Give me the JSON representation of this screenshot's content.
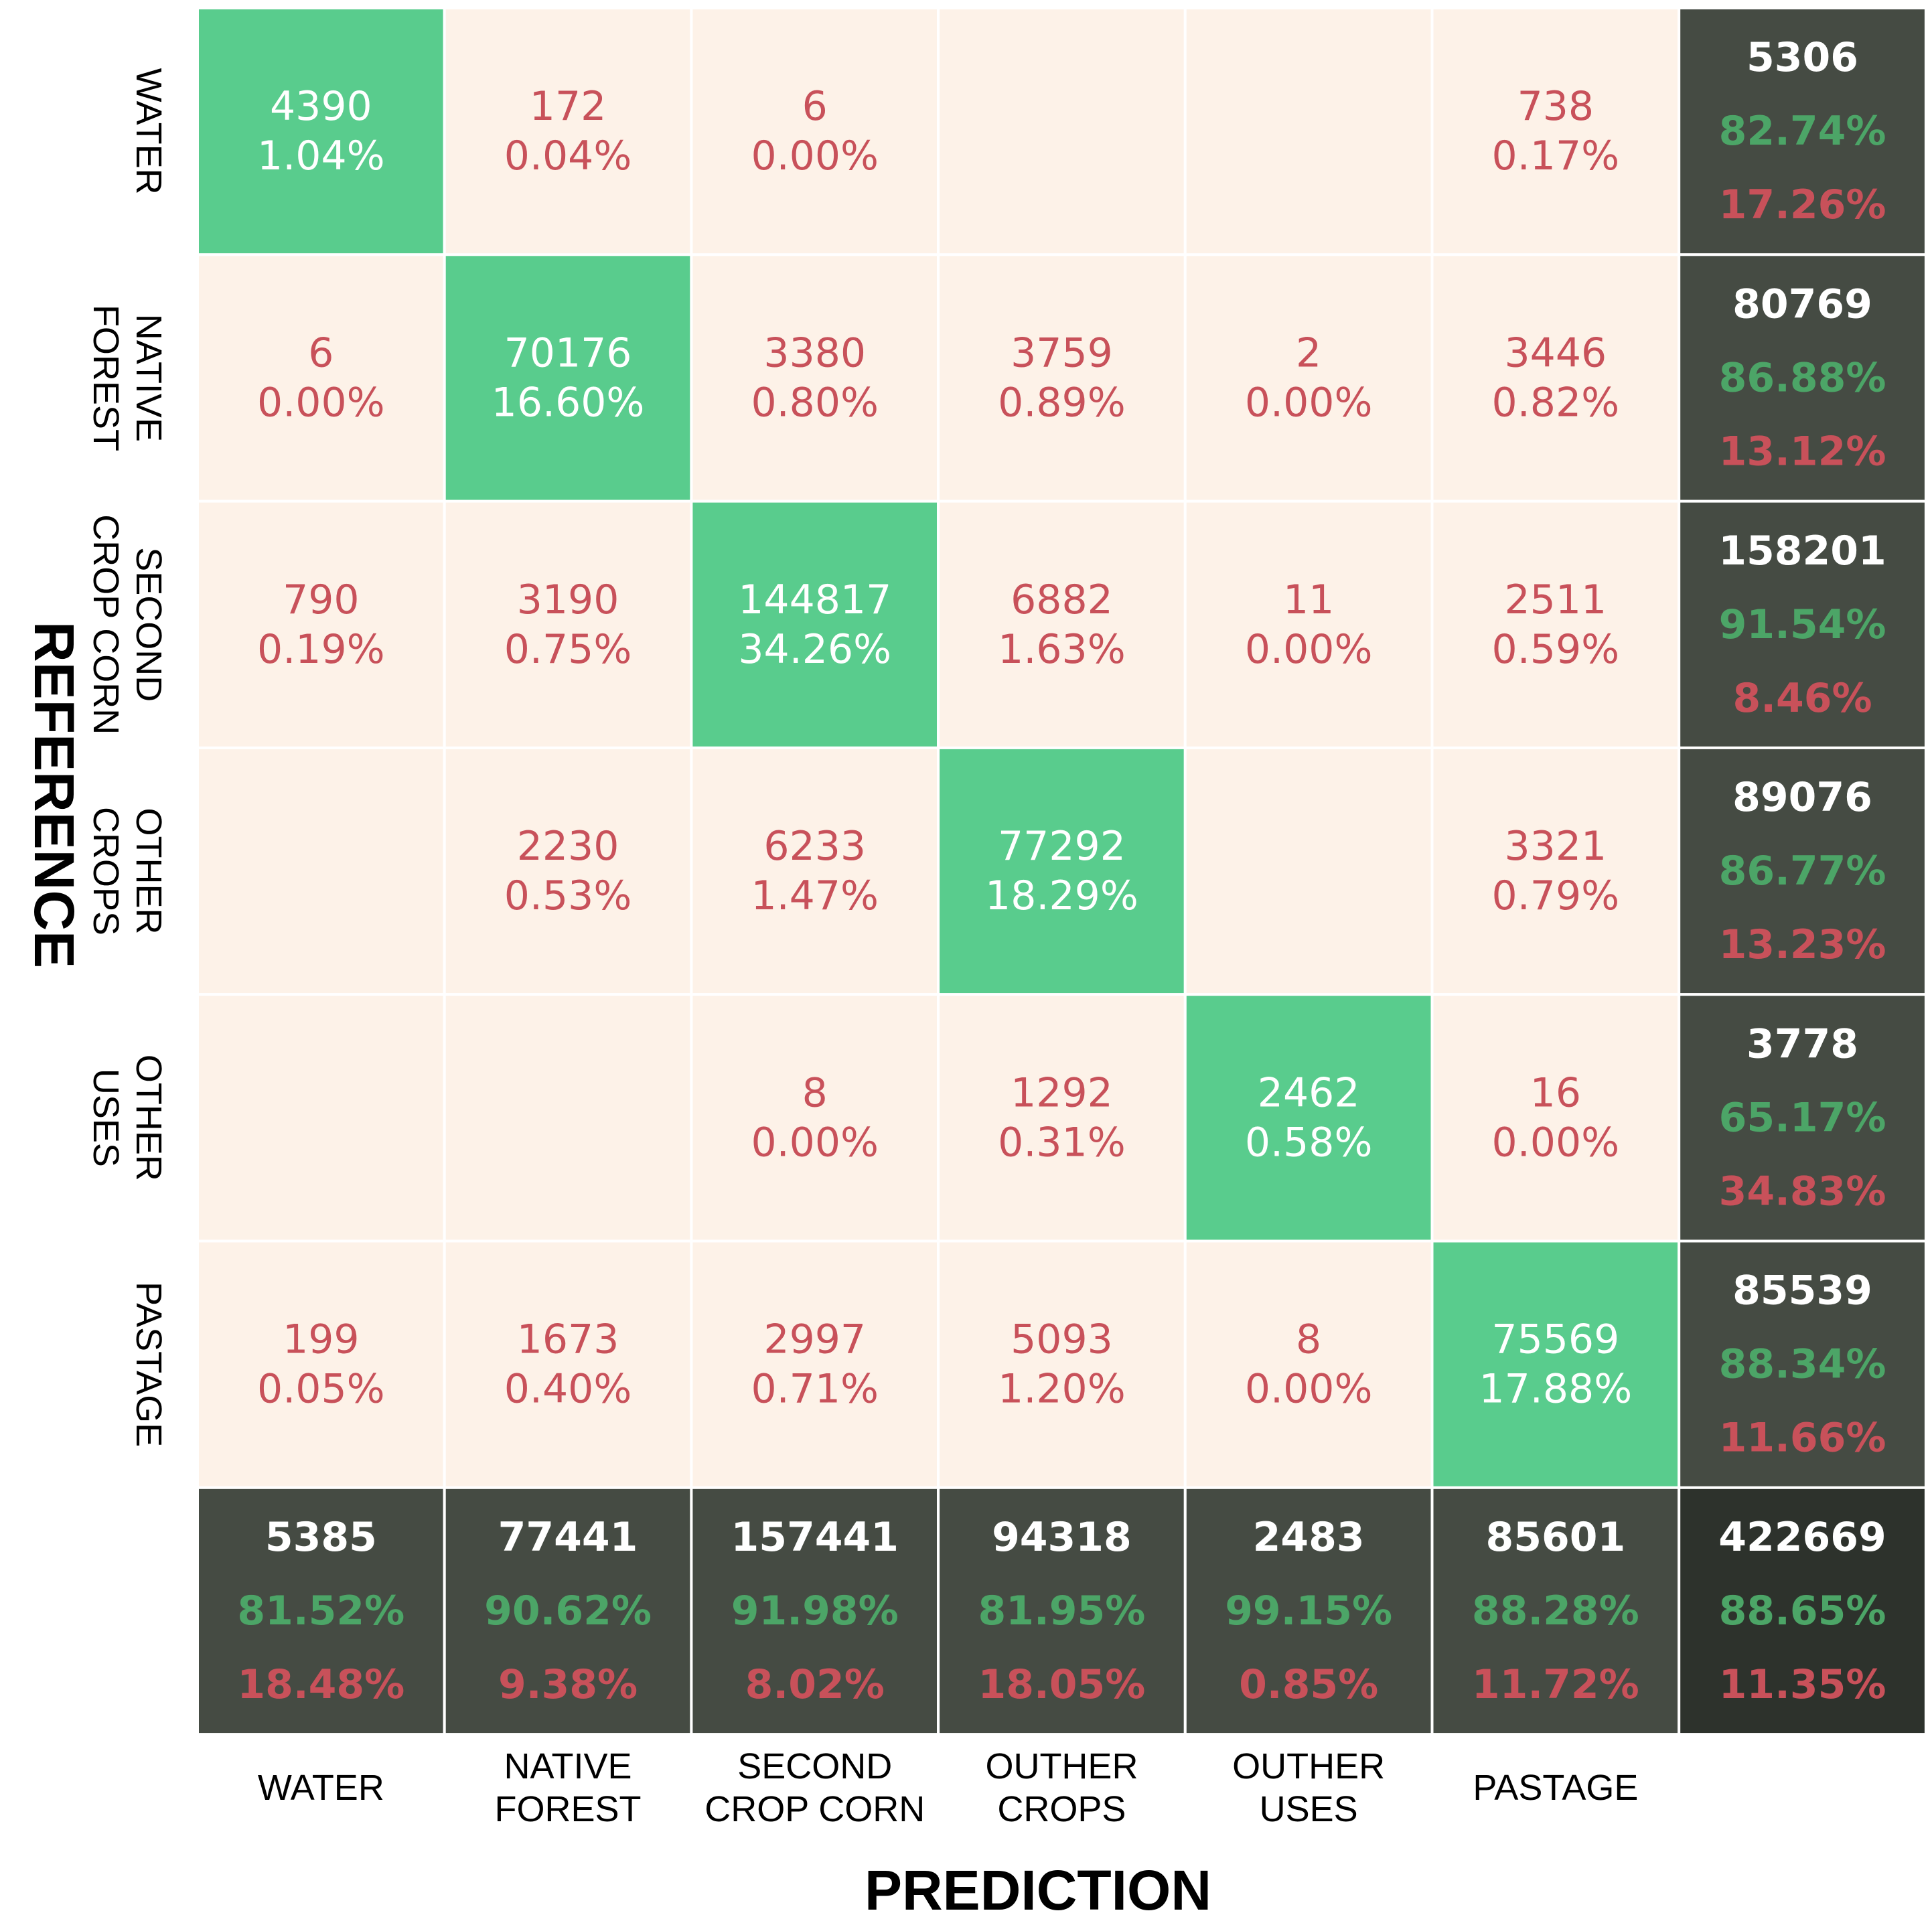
{
  "colors": {
    "diag": "#59cc8d",
    "offdiag": "#fdf2e8",
    "summary": "#454b43",
    "corner": "#2d322c",
    "red_text": "#c8515a",
    "green_text": "#4ca567",
    "white_text": "#ffffff",
    "grid_line": "#ffffff"
  },
  "chart_data": {
    "type": "heatmap",
    "title": "",
    "xlabel": "PREDICTION",
    "ylabel": "REFERENCE",
    "x_categories": [
      [
        "WATER"
      ],
      [
        "NATIVE",
        "FOREST"
      ],
      [
        "SECOND",
        "CROP CORN"
      ],
      [
        "OUTHER",
        "CROPS"
      ],
      [
        "OUTHER",
        "USES"
      ],
      [
        "PASTAGE"
      ]
    ],
    "y_categories": [
      [
        "WATER"
      ],
      [
        "NATIVE",
        "FOREST"
      ],
      [
        "SECOND",
        "CROP  CORN"
      ],
      [
        "OTHER",
        "CROPS"
      ],
      [
        "OTHER",
        "USES"
      ],
      [
        "PASTAGE"
      ]
    ],
    "cells": [
      [
        {
          "count": "4390",
          "pct": "1.04%"
        },
        {
          "count": "172",
          "pct": "0.04%"
        },
        {
          "count": "6",
          "pct": "0.00%"
        },
        null,
        null,
        {
          "count": "738",
          "pct": "0.17%"
        }
      ],
      [
        {
          "count": "6",
          "pct": "0.00%"
        },
        {
          "count": "70176",
          "pct": "16.60%"
        },
        {
          "count": "3380",
          "pct": "0.80%"
        },
        {
          "count": "3759",
          "pct": "0.89%"
        },
        {
          "count": "2",
          "pct": "0.00%"
        },
        {
          "count": "3446",
          "pct": "0.82%"
        }
      ],
      [
        {
          "count": "790",
          "pct": "0.19%"
        },
        {
          "count": "3190",
          "pct": "0.75%"
        },
        {
          "count": "144817",
          "pct": "34.26%"
        },
        {
          "count": "6882",
          "pct": "1.63%"
        },
        {
          "count": "11",
          "pct": "0.00%"
        },
        {
          "count": "2511",
          "pct": "0.59%"
        }
      ],
      [
        null,
        {
          "count": "2230",
          "pct": "0.53%"
        },
        {
          "count": "6233",
          "pct": "1.47%"
        },
        {
          "count": "77292",
          "pct": "18.29%"
        },
        null,
        {
          "count": "3321",
          "pct": "0.79%"
        }
      ],
      [
        null,
        null,
        {
          "count": "8",
          "pct": "0.00%"
        },
        {
          "count": "1292",
          "pct": "0.31%"
        },
        {
          "count": "2462",
          "pct": "0.58%"
        },
        {
          "count": "16",
          "pct": "0.00%"
        }
      ],
      [
        {
          "count": "199",
          "pct": "0.05%"
        },
        {
          "count": "1673",
          "pct": "0.40%"
        },
        {
          "count": "2997",
          "pct": "0.71%"
        },
        {
          "count": "5093",
          "pct": "1.20%"
        },
        {
          "count": "8",
          "pct": "0.00%"
        },
        {
          "count": "75569",
          "pct": "17.88%"
        }
      ]
    ],
    "row_totals": [
      {
        "total": "5306",
        "correct": "82.74%",
        "error": "17.26%"
      },
      {
        "total": "80769",
        "correct": "86.88%",
        "error": "13.12%"
      },
      {
        "total": "158201",
        "correct": "91.54%",
        "error": "8.46%"
      },
      {
        "total": "89076",
        "correct": "86.77%",
        "error": "13.23%"
      },
      {
        "total": "3778",
        "correct": "65.17%",
        "error": "34.83%"
      },
      {
        "total": "85539",
        "correct": "88.34%",
        "error": "11.66%"
      }
    ],
    "col_totals": [
      {
        "total": "5385",
        "correct": "81.52%",
        "error": "18.48%"
      },
      {
        "total": "77441",
        "correct": "90.62%",
        "error": "9.38%"
      },
      {
        "total": "157441",
        "correct": "91.98%",
        "error": "8.02%"
      },
      {
        "total": "94318",
        "correct": "81.95%",
        "error": "18.05%"
      },
      {
        "total": "2483",
        "correct": "99.15%",
        "error": "0.85%"
      },
      {
        "total": "85601",
        "correct": "88.28%",
        "error": "11.72%"
      }
    ],
    "grand_total": {
      "total": "422669",
      "correct": "88.65%",
      "error": "11.35%"
    }
  }
}
